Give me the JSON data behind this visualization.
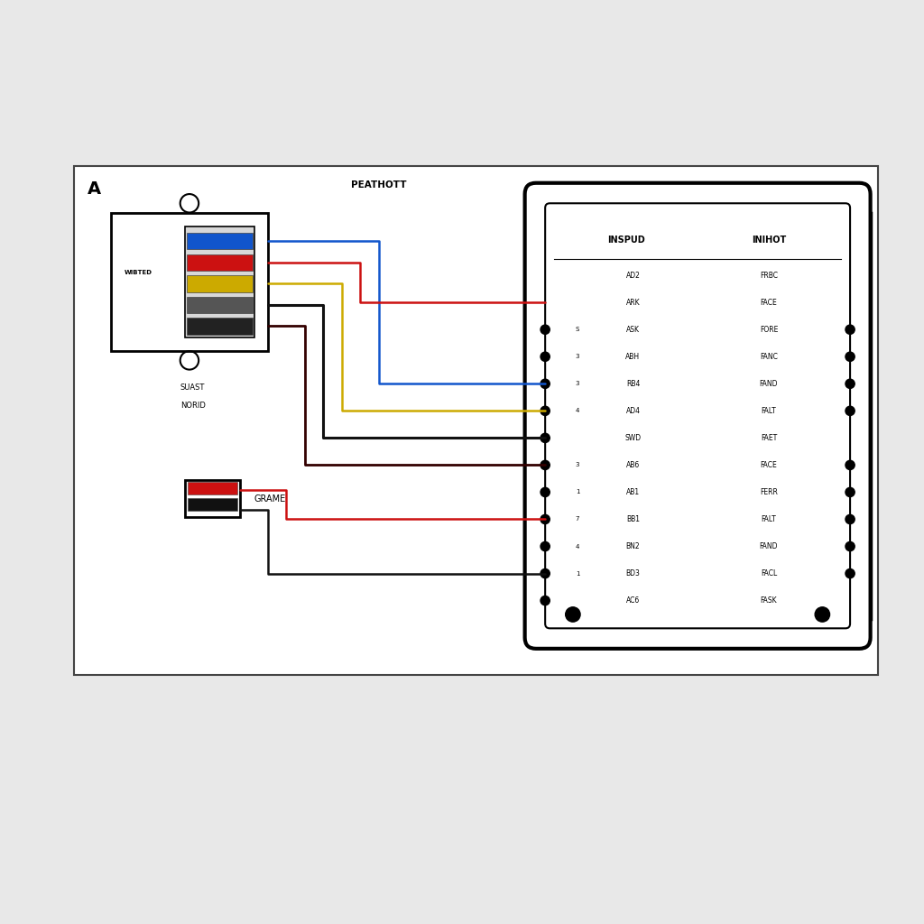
{
  "bg_color": "#e8e8e8",
  "diagram_bg": "#ffffff",
  "label_A": "A",
  "connector_label": "PEATHOTT",
  "module_header_left": "INSPUD",
  "module_header_right": "INIHOT",
  "module_pins_left": [
    "AD2",
    "ARK",
    "ASK",
    "ABH",
    "RB4",
    "AD4",
    "SWD",
    "AB6",
    "AB1",
    "BB1",
    "BN2",
    "BD3",
    "AC6"
  ],
  "module_pins_right": [
    "FRBC",
    "FACE",
    "FORE",
    "FANC",
    "FAND",
    "FALT",
    "FAET",
    "FACE",
    "FERR",
    "FALT",
    "FAND",
    "FACL",
    "FASK"
  ],
  "pin_numbers_left": [
    "",
    "",
    "S",
    "3",
    "3",
    "4",
    "",
    "3",
    "1",
    "7",
    "4",
    "1",
    ""
  ],
  "small_box_label": "WIBTED",
  "small_box_sub1": "SUAST",
  "small_box_sub2": "NORID",
  "ground_label": "GRAME",
  "wire_blue": "#1155cc",
  "wire_red": "#cc1111",
  "wire_yellow": "#ccaa00",
  "wire_black": "#111111",
  "wire_dark": "#330000"
}
